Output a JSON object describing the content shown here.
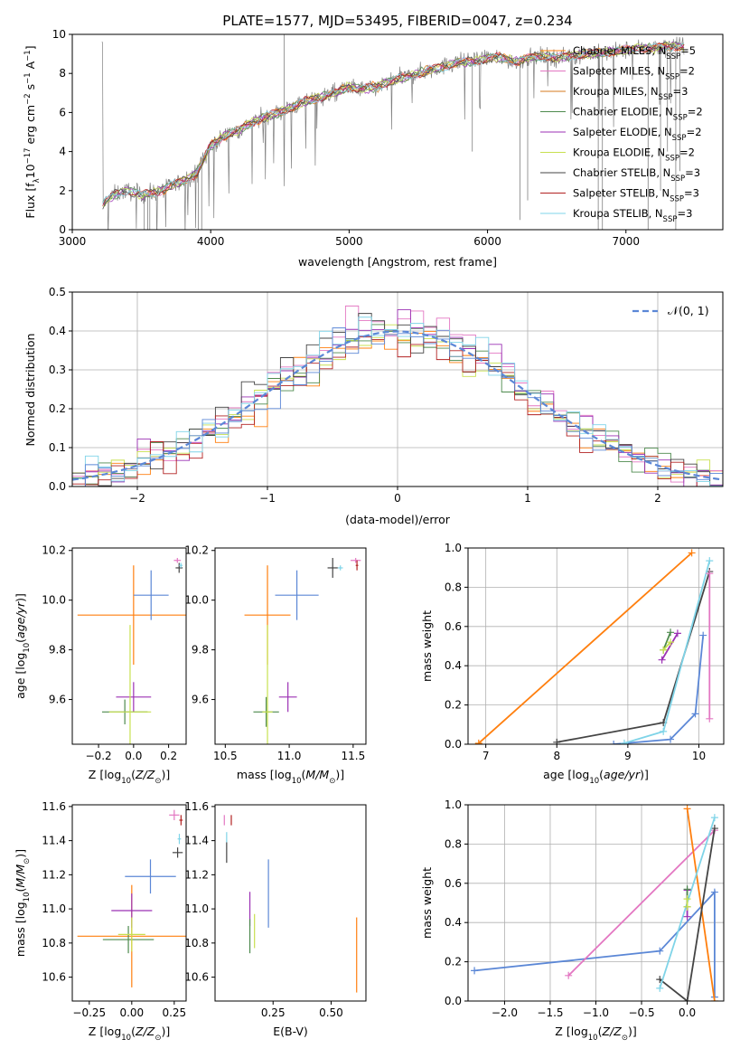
{
  "figure_title": "PLATE=1577, MJD=53495, FIBERID=0047, z=0.234",
  "colors": {
    "chabrier_miles": "#ff7f0e",
    "salpeter_miles": "#e377c2",
    "kroupa_miles": "#d47a1e",
    "chabrier_elodie": "#4d8a4d",
    "salpeter_elodie": "#9b30b4",
    "kroupa_elodie": "#c8e050",
    "chabrier_stelib": "#444444",
    "salpeter_stelib": "#b22222",
    "kroupa_stelib": "#7fd4e8",
    "model_blue": "#5b87d6",
    "spectrum_data": "#808080",
    "normal_curve": "#5b87d6"
  },
  "chart_data": [
    {
      "id": "spectrum",
      "type": "line",
      "title": "",
      "xlabel": "wavelength [Angstrom, rest frame]",
      "ylabel": "Flux [fλ10⁻¹⁷ erg cm⁻² s⁻¹ A⁻¹]",
      "xlim": [
        3000,
        7700
      ],
      "ylim": [
        0,
        10
      ],
      "xticks": [
        3000,
        4000,
        5000,
        6000,
        7000
      ],
      "yticks": [
        0,
        2,
        4,
        6,
        8,
        10
      ],
      "legend_position": "top-right",
      "legend": [
        "Chabrier MILES, N_SSP=5",
        "Salpeter MILES, N_SSP=2",
        "Kroupa MILES, N_SSP=3",
        "Chabrier ELODIE, N_SSP=2",
        "Salpeter ELODIE, N_SSP=2",
        "Kroupa ELODIE, N_SSP=2",
        "Chabrier STELIB, N_SSP=3",
        "Salpeter STELIB, N_SSP=3",
        "Kroupa STELIB, N_SSP=3"
      ],
      "legend_display": [
        {
          "base": "Chabrier MILES, N",
          "sub": "SSP",
          "tail": "=5"
        },
        {
          "base": "Salpeter MILES, N",
          "sub": "SSP",
          "tail": "=2"
        },
        {
          "base": "Kroupa MILES, N",
          "sub": "SSP",
          "tail": "=3"
        },
        {
          "base": "Chabrier ELODIE, N",
          "sub": "SSP",
          "tail": "=2"
        },
        {
          "base": "Salpeter ELODIE, N",
          "sub": "SSP",
          "tail": "=2"
        },
        {
          "base": "Kroupa ELODIE, N",
          "sub": "SSP",
          "tail": "=2"
        },
        {
          "base": "Chabrier STELIB, N",
          "sub": "SSP",
          "tail": "=3"
        },
        {
          "base": "Salpeter STELIB, N",
          "sub": "SSP",
          "tail": "=3"
        },
        {
          "base": "Kroupa STELIB, N",
          "sub": "SSP",
          "tail": "=3"
        }
      ],
      "continuum": [
        [
          3220,
          1.3
        ],
        [
          3300,
          1.8
        ],
        [
          3400,
          2.0
        ],
        [
          3500,
          1.8
        ],
        [
          3600,
          1.9
        ],
        [
          3700,
          2.2
        ],
        [
          3800,
          2.5
        ],
        [
          3900,
          2.9
        ],
        [
          4000,
          4.3
        ],
        [
          4100,
          4.8
        ],
        [
          4200,
          5.1
        ],
        [
          4300,
          5.5
        ],
        [
          4400,
          5.8
        ],
        [
          4500,
          6.0
        ],
        [
          4600,
          6.3
        ],
        [
          4700,
          6.6
        ],
        [
          4800,
          6.8
        ],
        [
          4900,
          7.0
        ],
        [
          5000,
          7.3
        ],
        [
          5100,
          7.2
        ],
        [
          5200,
          7.3
        ],
        [
          5300,
          7.6
        ],
        [
          5400,
          7.8
        ],
        [
          5500,
          8.0
        ],
        [
          5600,
          8.2
        ],
        [
          5700,
          8.4
        ],
        [
          5800,
          8.6
        ],
        [
          5900,
          8.6
        ],
        [
          6000,
          8.8
        ],
        [
          6100,
          8.8
        ],
        [
          6200,
          8.6
        ],
        [
          6300,
          8.8
        ],
        [
          6400,
          8.9
        ],
        [
          6500,
          8.8
        ],
        [
          6600,
          8.9
        ],
        [
          6700,
          9.0
        ],
        [
          6800,
          9.0
        ],
        [
          6900,
          9.1
        ],
        [
          7000,
          9.2
        ],
        [
          7100,
          9.3
        ],
        [
          7200,
          9.3
        ],
        [
          7300,
          9.4
        ],
        [
          7400,
          9.4
        ]
      ]
    },
    {
      "id": "residuals",
      "type": "histogram",
      "title": "",
      "xlabel": "(data-model)/error",
      "ylabel": "Normed distribution",
      "xlim": [
        -2.5,
        2.5
      ],
      "ylim": [
        0,
        0.5
      ],
      "xticks": [
        -2,
        -1,
        0,
        1,
        2
      ],
      "yticks": [
        0.0,
        0.1,
        0.2,
        0.3,
        0.4,
        0.5
      ],
      "grid": true,
      "legend_position": "top-right",
      "legend": [
        "N(0,1)"
      ],
      "legend_display": "𝒩(0, 1)",
      "normal": {
        "mean": 0,
        "sigma": 1
      }
    },
    {
      "id": "age_vs_Z",
      "type": "scatter",
      "xlabel": "Z [log10(Z/Z⊙)]",
      "ylabel": "age [log10(age/yr)]",
      "xlim": [
        -0.35,
        0.3
      ],
      "ylim": [
        9.42,
        10.21
      ],
      "xticks": [
        -0.2,
        0.0,
        0.2
      ],
      "yticks": [
        9.6,
        9.8,
        10.0,
        10.2
      ],
      "points": [
        {
          "series": "chabrier_miles",
          "x": 0.0,
          "y": 9.94,
          "xerr": 0.32,
          "yerr": 0.2
        },
        {
          "series": "model_blue",
          "x": 0.1,
          "y": 10.02,
          "xerr": 0.1,
          "yerr": 0.1
        },
        {
          "series": "salpeter_miles",
          "x": 0.25,
          "y": 10.16,
          "xerr": 0.02,
          "yerr": 0.01
        },
        {
          "series": "chabrier_stelib",
          "x": 0.26,
          "y": 10.13,
          "xerr": 0.02,
          "yerr": 0.02
        },
        {
          "series": "kroupa_stelib",
          "x": 0.27,
          "y": 10.14,
          "xerr": 0.01,
          "yerr": 0.01
        },
        {
          "series": "salpeter_elodie",
          "x": 0.0,
          "y": 9.61,
          "xerr": 0.1,
          "yerr": 0.06
        },
        {
          "series": "chabrier_elodie",
          "x": -0.05,
          "y": 9.55,
          "xerr": 0.13,
          "yerr": 0.05
        },
        {
          "series": "kroupa_elodie",
          "x": -0.02,
          "y": 9.55,
          "xerr": 0.12,
          "yerr": 0.35
        }
      ]
    },
    {
      "id": "age_vs_mass",
      "type": "scatter",
      "xlabel": "mass [log10(M/M⊙)]",
      "ylabel": "",
      "xlim": [
        10.42,
        11.6
      ],
      "ylim": [
        9.42,
        10.21
      ],
      "xticks": [
        10.5,
        11.0,
        11.5
      ],
      "yticks": [
        9.6,
        9.8,
        10.0,
        10.2
      ],
      "points": [
        {
          "series": "chabrier_miles",
          "x": 10.83,
          "y": 9.94,
          "xerr": 0.18,
          "yerr": 0.2
        },
        {
          "series": "model_blue",
          "x": 11.06,
          "y": 10.02,
          "xerr": 0.17,
          "yerr": 0.1
        },
        {
          "series": "chabrier_stelib",
          "x": 11.34,
          "y": 10.13,
          "xerr": 0.04,
          "yerr": 0.04
        },
        {
          "series": "kroupa_stelib",
          "x": 11.4,
          "y": 10.13,
          "xerr": 0.02,
          "yerr": 0.01
        },
        {
          "series": "salpeter_miles",
          "x": 11.52,
          "y": 10.16,
          "xerr": 0.04,
          "yerr": 0.01
        },
        {
          "series": "salpeter_stelib",
          "x": 11.53,
          "y": 10.14,
          "xerr": 0.01,
          "yerr": 0.02
        },
        {
          "series": "salpeter_elodie",
          "x": 10.99,
          "y": 9.61,
          "xerr": 0.07,
          "yerr": 0.06
        },
        {
          "series": "chabrier_elodie",
          "x": 10.82,
          "y": 9.55,
          "xerr": 0.1,
          "yerr": 0.06
        },
        {
          "series": "kroupa_elodie",
          "x": 10.83,
          "y": 9.55,
          "xerr": 0.04,
          "yerr": 0.35
        }
      ]
    },
    {
      "id": "mass_weight_vs_age",
      "type": "line",
      "xlabel": "age [log10(age/yr)]",
      "ylabel": "mass weight",
      "xlim": [
        6.75,
        10.35
      ],
      "ylim": [
        0,
        1
      ],
      "xticks": [
        7,
        8,
        9,
        10
      ],
      "yticks": [
        0.0,
        0.2,
        0.4,
        0.6,
        0.8,
        1.0
      ],
      "grid": true,
      "series": [
        {
          "key": "chabrier_miles",
          "x": [
            6.9,
            9.9
          ],
          "y": [
            0.005,
            0.975
          ]
        },
        {
          "key": "chabrier_stelib",
          "x": [
            8.0,
            9.5,
            10.15
          ],
          "y": [
            0.01,
            0.11,
            0.88
          ]
        },
        {
          "key": "model_blue",
          "x": [
            8.8,
            9.6,
            9.95,
            10.06
          ],
          "y": [
            0.0,
            0.025,
            0.155,
            0.555
          ]
        },
        {
          "key": "kroupa_stelib",
          "x": [
            8.95,
            9.5,
            10.15
          ],
          "y": [
            0.005,
            0.065,
            0.935
          ]
        },
        {
          "key": "salpeter_miles",
          "x": [
            10.15,
            10.15
          ],
          "y": [
            0.13,
            0.87
          ]
        },
        {
          "key": "salpeter_elodie",
          "x": [
            9.48,
            9.7
          ],
          "y": [
            0.43,
            0.565
          ]
        },
        {
          "key": "chabrier_elodie",
          "x": [
            9.5,
            9.6
          ],
          "y": [
            0.48,
            0.57
          ]
        },
        {
          "key": "kroupa_elodie",
          "x": [
            9.5,
            9.6
          ],
          "y": [
            0.48,
            0.52
          ]
        }
      ]
    },
    {
      "id": "mass_vs_Z",
      "type": "scatter",
      "xlabel": "Z [log10(Z/Z⊙)]",
      "ylabel": "mass [log10(M/M⊙)]",
      "xlim": [
        -0.35,
        0.32
      ],
      "ylim": [
        10.46,
        11.61
      ],
      "xticks": [
        -0.25,
        0.0,
        0.25
      ],
      "yticks": [
        10.6,
        10.8,
        11.0,
        11.2,
        11.4,
        11.6
      ],
      "points": [
        {
          "series": "chabrier_miles",
          "x": 0.0,
          "y": 10.84,
          "xerr": 0.32,
          "yerr": 0.3
        },
        {
          "series": "model_blue",
          "x": 0.11,
          "y": 11.19,
          "xerr": 0.15,
          "yerr": 0.1
        },
        {
          "series": "salpeter_miles",
          "x": 0.25,
          "y": 11.55,
          "xerr": 0.03,
          "yerr": 0.03
        },
        {
          "series": "salpeter_stelib",
          "x": 0.29,
          "y": 11.52,
          "xerr": 0.01,
          "yerr": 0.03
        },
        {
          "series": "kroupa_stelib",
          "x": 0.28,
          "y": 11.41,
          "xerr": 0.01,
          "yerr": 0.03
        },
        {
          "series": "chabrier_stelib",
          "x": 0.27,
          "y": 11.33,
          "xerr": 0.03,
          "yerr": 0.03
        },
        {
          "series": "salpeter_elodie",
          "x": 0.0,
          "y": 10.99,
          "xerr": 0.12,
          "yerr": 0.1
        },
        {
          "series": "chabrier_elodie",
          "x": -0.02,
          "y": 10.82,
          "xerr": 0.15,
          "yerr": 0.08
        },
        {
          "series": "kroupa_elodie",
          "x": 0.0,
          "y": 10.85,
          "xerr": 0.08,
          "yerr": 0.1
        }
      ]
    },
    {
      "id": "mass_vs_ebv",
      "type": "scatter",
      "xlabel": "E(B-V)",
      "ylabel": "",
      "xlim": [
        0.0,
        0.65
      ],
      "ylim": [
        10.46,
        11.61
      ],
      "xticks": [
        0.25,
        0.5
      ],
      "yticks": [
        10.6,
        10.8,
        11.0,
        11.2,
        11.4,
        11.6
      ],
      "points": [
        {
          "series": "salpeter_miles",
          "x": 0.04,
          "y": 11.52,
          "xerr": 0.0,
          "yerr": 0.03
        },
        {
          "series": "salpeter_stelib",
          "x": 0.07,
          "y": 11.52,
          "xerr": 0.0,
          "yerr": 0.03
        },
        {
          "series": "kroupa_stelib",
          "x": 0.05,
          "y": 11.42,
          "xerr": 0.0,
          "yerr": 0.03
        },
        {
          "series": "chabrier_stelib",
          "x": 0.05,
          "y": 11.33,
          "xerr": 0.0,
          "yerr": 0.06
        },
        {
          "series": "model_blue",
          "x": 0.23,
          "y": 11.09,
          "xerr": 0.0,
          "yerr": 0.2
        },
        {
          "series": "salpeter_elodie",
          "x": 0.15,
          "y": 11.0,
          "xerr": 0.0,
          "yerr": 0.1
        },
        {
          "series": "kroupa_elodie",
          "x": 0.17,
          "y": 10.87,
          "xerr": 0.0,
          "yerr": 0.1
        },
        {
          "series": "chabrier_elodie",
          "x": 0.15,
          "y": 10.84,
          "xerr": 0.0,
          "yerr": 0.1
        },
        {
          "series": "chabrier_miles",
          "x": 0.61,
          "y": 10.73,
          "xerr": 0.0,
          "yerr": 0.22
        }
      ]
    },
    {
      "id": "mass_weight_vs_Z",
      "type": "line",
      "xlabel": "Z [log10(Z/Z⊙)]",
      "ylabel": "mass weight",
      "xlim": [
        -2.4,
        0.4
      ],
      "ylim": [
        0,
        1
      ],
      "xticks": [
        -2.0,
        -1.5,
        -1.0,
        -0.5,
        0.0
      ],
      "yticks": [
        0.0,
        0.2,
        0.4,
        0.6,
        0.8,
        1.0
      ],
      "grid": true,
      "series": [
        {
          "key": "model_blue",
          "x": [
            -2.33,
            -0.3,
            0.3,
            0.3
          ],
          "y": [
            0.155,
            0.255,
            0.555,
            0.02
          ]
        },
        {
          "key": "salpeter_miles",
          "x": [
            -1.3,
            0.3
          ],
          "y": [
            0.13,
            0.87
          ]
        },
        {
          "key": "chabrier_miles",
          "x": [
            0.0,
            0.3
          ],
          "y": [
            0.98,
            0.0
          ]
        },
        {
          "key": "chabrier_stelib",
          "x": [
            -0.3,
            0.0,
            0.3
          ],
          "y": [
            0.11,
            0.0,
            0.88
          ]
        },
        {
          "key": "kroupa_stelib",
          "x": [
            -0.3,
            0.3
          ],
          "y": [
            0.065,
            0.935
          ]
        },
        {
          "key": "salpeter_elodie",
          "x": [
            0.0,
            0.0
          ],
          "y": [
            0.43,
            0.565
          ]
        },
        {
          "key": "chabrier_elodie",
          "x": [
            0.0,
            0.0
          ],
          "y": [
            0.48,
            0.57
          ]
        },
        {
          "key": "kroupa_elodie",
          "x": [
            0.0,
            0.0
          ],
          "y": [
            0.48,
            0.52
          ]
        }
      ]
    }
  ]
}
